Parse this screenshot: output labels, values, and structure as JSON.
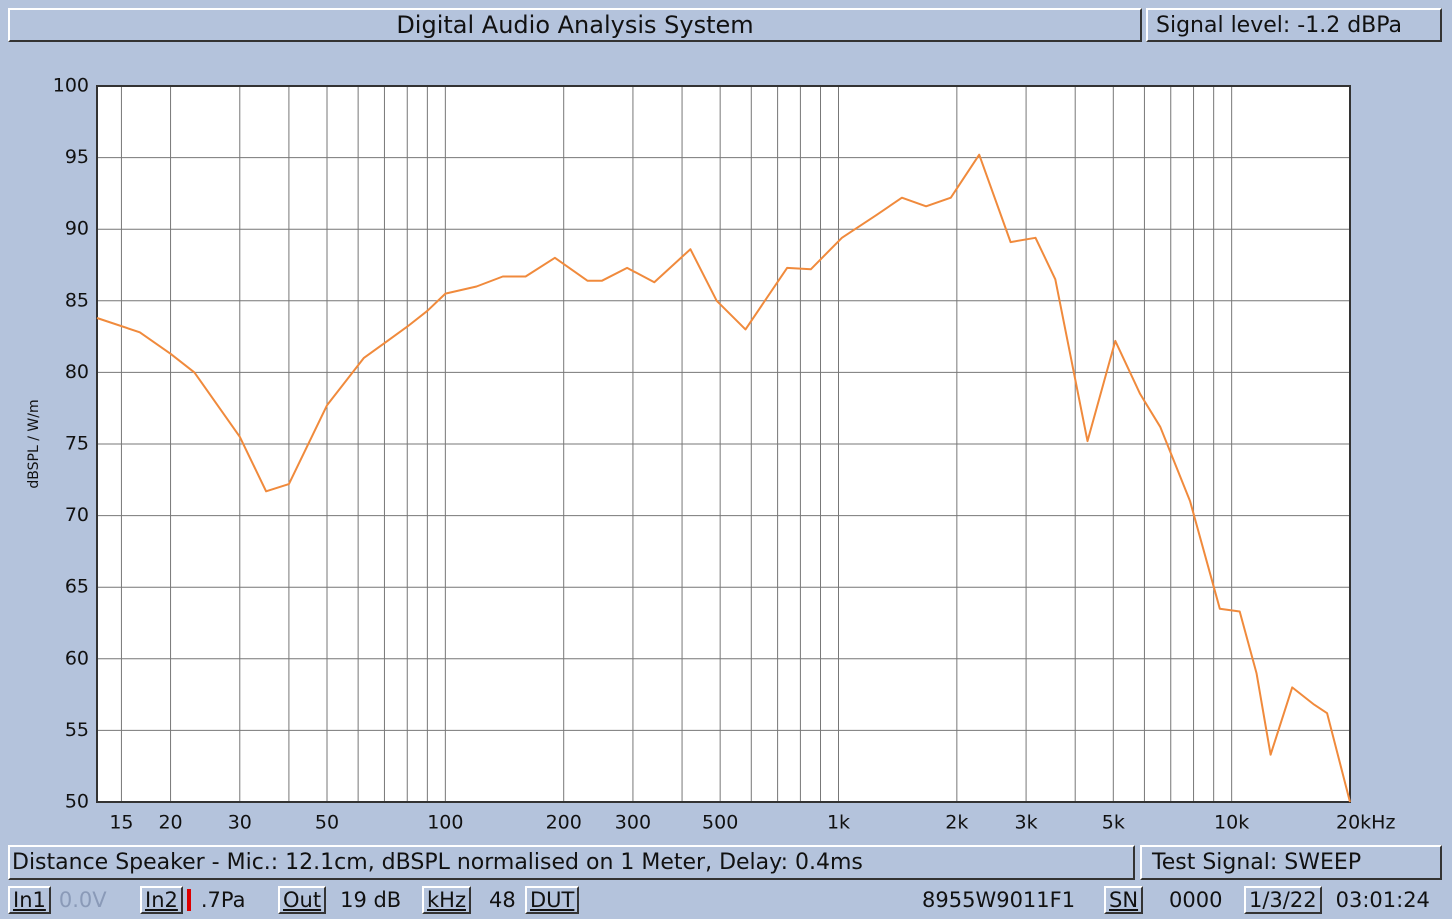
{
  "header": {
    "title": "Digital Audio Analysis System",
    "signal": "Signal level: -1.2 dBPa"
  },
  "chart_data": {
    "type": "line",
    "ylabel": "dBSPL / W/m",
    "log_x": true,
    "color": "#f08a3c",
    "xlim": [
      13,
      20000
    ],
    "ylim": [
      50,
      100
    ],
    "yticks": [
      50,
      55,
      60,
      65,
      70,
      75,
      80,
      85,
      90,
      95,
      100
    ],
    "xticks": [
      15,
      20,
      30,
      50,
      100,
      200,
      300,
      500,
      {
        "value": 1000,
        "label": "1k"
      },
      {
        "value": 2000,
        "label": "2k"
      },
      {
        "value": 3000,
        "label": "3k"
      },
      {
        "value": 5000,
        "label": "5k"
      },
      {
        "value": 10000,
        "label": "10k"
      },
      {
        "value": 20000,
        "label": "20kHz"
      }
    ],
    "xgrid": [
      15,
      20,
      30,
      40,
      50,
      60,
      70,
      80,
      90,
      100,
      200,
      300,
      400,
      500,
      600,
      700,
      800,
      900,
      1000,
      2000,
      3000,
      4000,
      5000,
      6000,
      7000,
      8000,
      9000,
      10000,
      20000
    ],
    "grid": true,
    "x": [
      13,
      16.7,
      20,
      23,
      30,
      35,
      40,
      50,
      62,
      80,
      90,
      100,
      120,
      140,
      160,
      190,
      230,
      250,
      290,
      340,
      420,
      490,
      580,
      740,
      850,
      1020,
      1250,
      1450,
      1670,
      1930,
      2280,
      2740,
      3170,
      3560,
      4300,
      5060,
      5850,
      6580,
      7840,
      9330,
      10480,
      11570,
      12560,
      14260,
      16210,
      17490,
      20000
    ],
    "values": [
      83.8,
      82.8,
      81.3,
      80,
      75.5,
      71.7,
      72.2,
      77.7,
      81,
      83.2,
      84.3,
      85.5,
      86,
      86.7,
      86.7,
      88,
      86.4,
      86.4,
      87.3,
      86.3,
      88.6,
      85,
      83,
      87.3,
      87.2,
      89.4,
      91,
      92.2,
      91.6,
      92.2,
      95.2,
      89.1,
      89.4,
      86.5,
      75.2,
      82.2,
      78.5,
      76.2,
      71,
      63.5,
      63.3,
      59,
      53.3,
      58,
      56.8,
      56.2,
      50
    ]
  },
  "info": {
    "distance": "Distance Speaker - Mic.: 12.1cm, dBSPL normalised on 1 Meter, Delay: 0.4ms",
    "test_signal": "Test Signal: SWEEP"
  },
  "status": {
    "in1": "In1",
    "in1_value": "0.0V",
    "in2": "In2",
    "in2_value": ".7Pa",
    "out": "Out",
    "out_value": "19 dB",
    "khz": "kHz",
    "khz_value": "48",
    "dut": "DUT",
    "dut_value": "8955W9011F1",
    "sn": "SN",
    "sn_value": "0000",
    "date": "1/3/22",
    "time": "03:01:24"
  }
}
